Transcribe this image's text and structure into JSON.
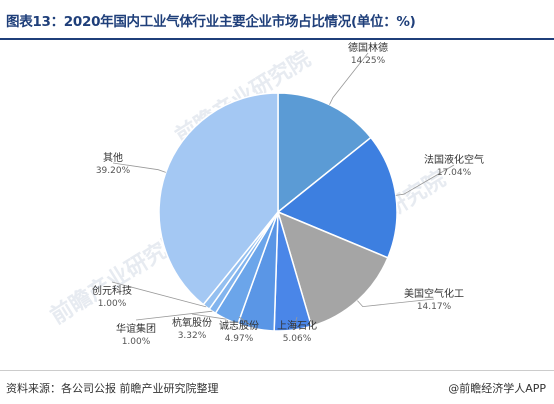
{
  "header": {
    "title": "图表13：2020年国内工业气体行业主要企业市场占比情况(单位：%)"
  },
  "watermark": {
    "text": "前瞻产业研究院"
  },
  "chart_data": {
    "type": "pie",
    "title": "图表13：2020年国内工业气体行业主要企业市场占比情况(单位：%)",
    "unit": "%",
    "slices": [
      {
        "label": "德国林德",
        "value": 14.25,
        "display": "14.25%",
        "color": "#5b9bd5"
      },
      {
        "label": "法国液化空气",
        "value": 17.04,
        "display": "17.04%",
        "color": "#3d7fe0"
      },
      {
        "label": "美国空气化工",
        "value": 14.17,
        "display": "14.17%",
        "color": "#a5a5a5"
      },
      {
        "label": "上海石化",
        "value": 5.06,
        "display": "5.06%",
        "color": "#4a86e8"
      },
      {
        "label": "诚志股份",
        "value": 4.97,
        "display": "4.97%",
        "color": "#5a96e6"
      },
      {
        "label": "杭氧股份",
        "value": 3.32,
        "display": "3.32%",
        "color": "#6ba5ea"
      },
      {
        "label": "华谊集团",
        "value": 1.0,
        "display": "1.00%",
        "color": "#82b4ee"
      },
      {
        "label": "创元科技",
        "value": 1.0,
        "display": "1.00%",
        "color": "#93bff0"
      },
      {
        "label": "其他",
        "value": 39.2,
        "display": "39.20%",
        "color": "#a4c8f3"
      }
    ]
  },
  "footer": {
    "source": "资料来源：各公司公报 前瞻产业研究院整理",
    "credit": "@前瞻经济学人APP"
  }
}
